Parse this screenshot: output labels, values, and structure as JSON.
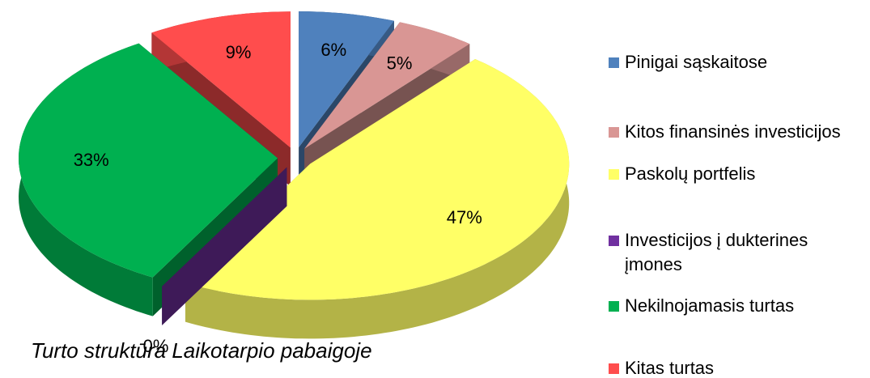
{
  "chart_data": {
    "type": "pie",
    "title": "Turto struktūra Laikotarpio pabaigoje",
    "categories": [
      "Pinigai sąskaitose",
      "Kitos finansinės investicijos",
      "Paskolų portfelis",
      "Investicijos į dukterines įmones",
      "Nekilnojamasis turtas",
      "Kitas turtas"
    ],
    "values": [
      6,
      5,
      47,
      0,
      33,
      9
    ],
    "value_labels": [
      "6%",
      "5%",
      "47%",
      "0%",
      "33%",
      "9%"
    ],
    "colors": [
      "#4f81bd",
      "#d99694",
      "#ffff66",
      "#7030a0",
      "#00b050",
      "#ff4d4d"
    ],
    "legend": "right"
  }
}
